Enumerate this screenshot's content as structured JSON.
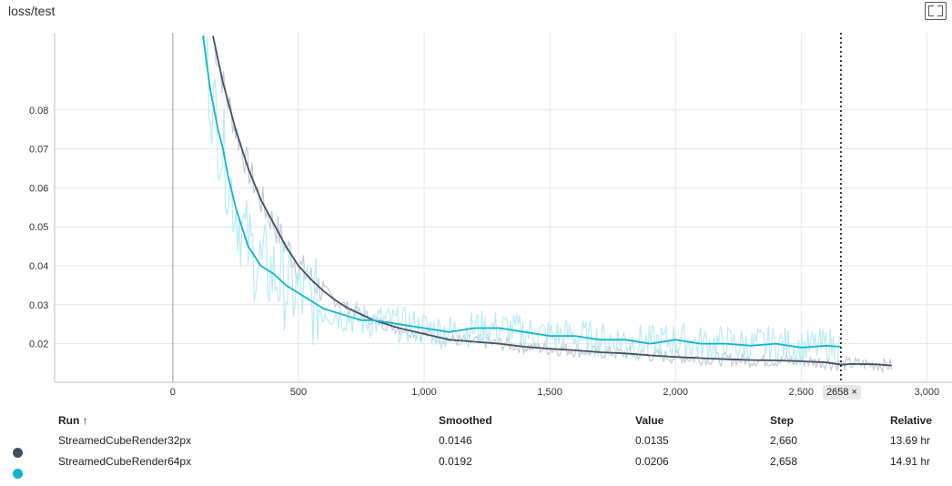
{
  "title": "loss/test",
  "colors": {
    "run32": "#425066",
    "run32_raw": "#c5cbd6",
    "run64": "#12b5cb",
    "run64_raw": "#b9ecf4",
    "grid": "#e6e6e6",
    "axis": "#bdbdbd"
  },
  "chart_data": {
    "type": "line",
    "title": "loss/test",
    "xlabel": "",
    "ylabel": "",
    "xlim": [
      -470,
      3100
    ],
    "ylim": [
      0.0101,
      0.0998
    ],
    "x_ticks": [
      "0",
      "500",
      "1,000",
      "1,500",
      "2,000",
      "2,500",
      "3,000"
    ],
    "y_ticks": [
      "0.02",
      "0.03",
      "0.04",
      "0.05",
      "0.06",
      "0.07",
      "0.08"
    ],
    "grid": true,
    "hover_step": 2658,
    "series": [
      {
        "name": "StreamedCubeRender32px",
        "color": "#425066",
        "x": [
          160,
          200,
          250,
          300,
          350,
          400,
          450,
          500,
          550,
          600,
          650,
          700,
          750,
          800,
          900,
          1000,
          1100,
          1200,
          1300,
          1400,
          1500,
          1600,
          1700,
          1800,
          1900,
          2000,
          2100,
          2200,
          2300,
          2400,
          2500,
          2600,
          2660,
          2700,
          2800,
          2860
        ],
        "values": [
          0.099,
          0.087,
          0.075,
          0.065,
          0.057,
          0.051,
          0.045,
          0.04,
          0.0365,
          0.0335,
          0.031,
          0.029,
          0.0275,
          0.026,
          0.024,
          0.0225,
          0.021,
          0.0205,
          0.02,
          0.0192,
          0.0187,
          0.0183,
          0.0178,
          0.0175,
          0.017,
          0.0166,
          0.0163,
          0.016,
          0.0158,
          0.0157,
          0.0155,
          0.0152,
          0.0146,
          0.0148,
          0.0147,
          0.0144
        ]
      },
      {
        "name": "StreamedCubeRender64px",
        "color": "#12b5cb",
        "x": [
          120,
          150,
          180,
          200,
          220,
          250,
          280,
          300,
          350,
          400,
          450,
          500,
          550,
          600,
          650,
          700,
          750,
          800,
          900,
          1000,
          1100,
          1200,
          1300,
          1400,
          1500,
          1600,
          1700,
          1800,
          1900,
          2000,
          2100,
          2200,
          2300,
          2400,
          2500,
          2600,
          2658
        ],
        "values": [
          0.099,
          0.085,
          0.075,
          0.07,
          0.063,
          0.055,
          0.049,
          0.045,
          0.04,
          0.038,
          0.035,
          0.033,
          0.031,
          0.029,
          0.028,
          0.027,
          0.026,
          0.026,
          0.025,
          0.024,
          0.023,
          0.024,
          0.024,
          0.023,
          0.022,
          0.022,
          0.021,
          0.021,
          0.02,
          0.021,
          0.02,
          0.02,
          0.0195,
          0.02,
          0.019,
          0.0195,
          0.0192
        ]
      }
    ]
  },
  "table": {
    "headers": {
      "run": "Run ↑",
      "smoothed": "Smoothed",
      "value": "Value",
      "step": "Step",
      "relative": "Relative"
    },
    "rows": [
      {
        "run": "StreamedCubeRender32px",
        "smoothed": "0.0146",
        "value": "0.0135",
        "step": "2,660",
        "relative": "13.69 hr",
        "color": "#425066"
      },
      {
        "run": "StreamedCubeRender64px",
        "smoothed": "0.0192",
        "value": "0.0206",
        "step": "2,658",
        "relative": "14.91 hr",
        "color": "#12b5cb"
      }
    ]
  }
}
